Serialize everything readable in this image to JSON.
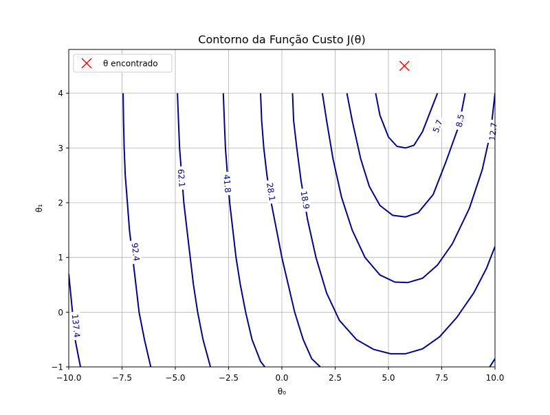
{
  "chart_data": {
    "type": "contour",
    "title": "Contorno da Função Custo J(θ)",
    "xlabel": "θ₀",
    "ylabel": "θ₁",
    "xlim": [
      -10,
      10
    ],
    "ylim": [
      -1,
      4.8
    ],
    "x_ticks": [
      -10,
      -7.5,
      -5,
      -2.5,
      0,
      2.5,
      5,
      7.5,
      10
    ],
    "x_tick_labels": [
      "−10.0",
      "−7.5",
      "−5.0",
      "−2.5",
      "0.0",
      "2.5",
      "5.0",
      "7.5",
      "10.0"
    ],
    "y_ticks": [
      -1,
      0,
      1,
      2,
      3,
      4
    ],
    "y_tick_labels": [
      "−1",
      "0",
      "1",
      "2",
      "3",
      "4"
    ],
    "grid": true,
    "legend_position": "top-left",
    "legend_entries": [
      {
        "label": "θ encontrado",
        "marker": "x",
        "color": "#ff0000"
      }
    ],
    "minimum_marker": {
      "x": 5.75,
      "y": 4.5,
      "color": "#ff0000",
      "marker": "x"
    },
    "contour_color": "#00008b",
    "contours": [
      {
        "label": "5.7",
        "label_at": [
          7.3,
          3.4
        ],
        "points": [
          [
            4.4,
            4.0
          ],
          [
            4.6,
            3.6
          ],
          [
            5.0,
            3.2
          ],
          [
            5.4,
            3.03
          ],
          [
            5.8,
            3.0
          ],
          [
            6.2,
            3.05
          ],
          [
            6.6,
            3.3
          ],
          [
            7.0,
            3.7
          ],
          [
            7.3,
            4.0
          ]
        ]
      },
      {
        "label": "8.5",
        "label_at": [
          8.35,
          3.5
        ],
        "points": [
          [
            3.05,
            4.0
          ],
          [
            3.3,
            3.5
          ],
          [
            3.7,
            2.8
          ],
          [
            4.1,
            2.3
          ],
          [
            4.6,
            1.95
          ],
          [
            5.2,
            1.77
          ],
          [
            5.8,
            1.74
          ],
          [
            6.4,
            1.82
          ],
          [
            7.1,
            2.15
          ],
          [
            7.7,
            2.75
          ],
          [
            8.3,
            3.4
          ],
          [
            8.6,
            4.0
          ]
        ]
      },
      {
        "label": "12.7",
        "label_at": [
          9.9,
          3.3
        ],
        "points": [
          [
            1.9,
            4.0
          ],
          [
            2.1,
            3.5
          ],
          [
            2.4,
            2.8
          ],
          [
            2.8,
            2.1
          ],
          [
            3.3,
            1.5
          ],
          [
            3.9,
            1.0
          ],
          [
            4.6,
            0.68
          ],
          [
            5.3,
            0.55
          ],
          [
            5.9,
            0.54
          ],
          [
            6.6,
            0.62
          ],
          [
            7.3,
            0.86
          ],
          [
            8.0,
            1.25
          ],
          [
            8.8,
            1.9
          ],
          [
            9.4,
            2.6
          ],
          [
            9.8,
            3.3
          ],
          [
            10.0,
            4.0
          ]
        ]
      },
      {
        "label": "18.9",
        "label_at": [
          1.1,
          2.05
        ],
        "points": [
          [
            0.5,
            4.0
          ],
          [
            0.55,
            3.5
          ],
          [
            0.7,
            3.0
          ],
          [
            0.9,
            2.4
          ],
          [
            1.2,
            1.7
          ],
          [
            1.6,
            1.0
          ],
          [
            2.1,
            0.35
          ],
          [
            2.7,
            -0.15
          ],
          [
            3.5,
            -0.5
          ],
          [
            4.3,
            -0.68
          ],
          [
            5.1,
            -0.76
          ],
          [
            5.8,
            -0.76
          ],
          [
            6.6,
            -0.67
          ],
          [
            7.4,
            -0.45
          ],
          [
            8.2,
            -0.1
          ],
          [
            9.0,
            0.35
          ],
          [
            9.6,
            0.8
          ],
          [
            10.0,
            1.2
          ]
        ]
      },
      {
        "label": "28.1",
        "label_at": [
          -0.5,
          2.2
        ],
        "points": [
          [
            -1.0,
            4.0
          ],
          [
            -0.95,
            3.5
          ],
          [
            -0.85,
            3.0
          ],
          [
            -0.7,
            2.5
          ],
          [
            -0.5,
            2.0
          ],
          [
            -0.25,
            1.5
          ],
          [
            0.0,
            1.0
          ],
          [
            0.3,
            0.5
          ],
          [
            0.6,
            0.0
          ],
          [
            1.0,
            -0.5
          ],
          [
            1.4,
            -0.85
          ],
          [
            1.8,
            -1.0
          ]
        ]
      },
      {
        "label": "41.8",
        "label_at": [
          -2.55,
          2.35
        ],
        "points": [
          [
            -2.75,
            4.0
          ],
          [
            -2.7,
            3.5
          ],
          [
            -2.65,
            3.0
          ],
          [
            -2.55,
            2.5
          ],
          [
            -2.45,
            2.0
          ],
          [
            -2.3,
            1.5
          ],
          [
            -2.15,
            1.0
          ],
          [
            -1.95,
            0.5
          ],
          [
            -1.7,
            0.0
          ],
          [
            -1.4,
            -0.5
          ],
          [
            -1.0,
            -0.9
          ],
          [
            -0.8,
            -1.0
          ]
        ]
      },
      {
        "label": "62.1",
        "label_at": [
          -4.7,
          2.45
        ],
        "points": [
          [
            -4.9,
            4.0
          ],
          [
            -4.85,
            3.5
          ],
          [
            -4.8,
            3.0
          ],
          [
            -4.7,
            2.5
          ],
          [
            -4.6,
            2.0
          ],
          [
            -4.45,
            1.5
          ],
          [
            -4.3,
            1.0
          ],
          [
            -4.15,
            0.5
          ],
          [
            -3.95,
            0.0
          ],
          [
            -3.7,
            -0.5
          ],
          [
            -3.35,
            -1.0
          ]
        ]
      },
      {
        "label": "92.4",
        "label_at": [
          -6.85,
          1.1
        ],
        "points": [
          [
            -7.45,
            4.0
          ],
          [
            -7.43,
            3.5
          ],
          [
            -7.4,
            3.0
          ],
          [
            -7.35,
            2.5
          ],
          [
            -7.25,
            2.0
          ],
          [
            -7.15,
            1.5
          ],
          [
            -7.0,
            1.0
          ],
          [
            -6.85,
            0.5
          ],
          [
            -6.7,
            0.0
          ],
          [
            -6.45,
            -0.5
          ],
          [
            -6.15,
            -1.0
          ]
        ]
      },
      {
        "label": "137.4",
        "label_at": [
          -9.65,
          -0.25
        ],
        "points": [
          [
            -10.0,
            0.7
          ],
          [
            -9.9,
            0.3
          ],
          [
            -9.8,
            -0.1
          ],
          [
            -9.7,
            -0.5
          ],
          [
            -9.55,
            -0.8
          ],
          [
            -9.45,
            -1.0
          ]
        ]
      },
      {
        "label": "",
        "label_at": null,
        "points": [
          [
            9.75,
            -1.0
          ],
          [
            10.0,
            -0.85
          ]
        ]
      }
    ]
  }
}
